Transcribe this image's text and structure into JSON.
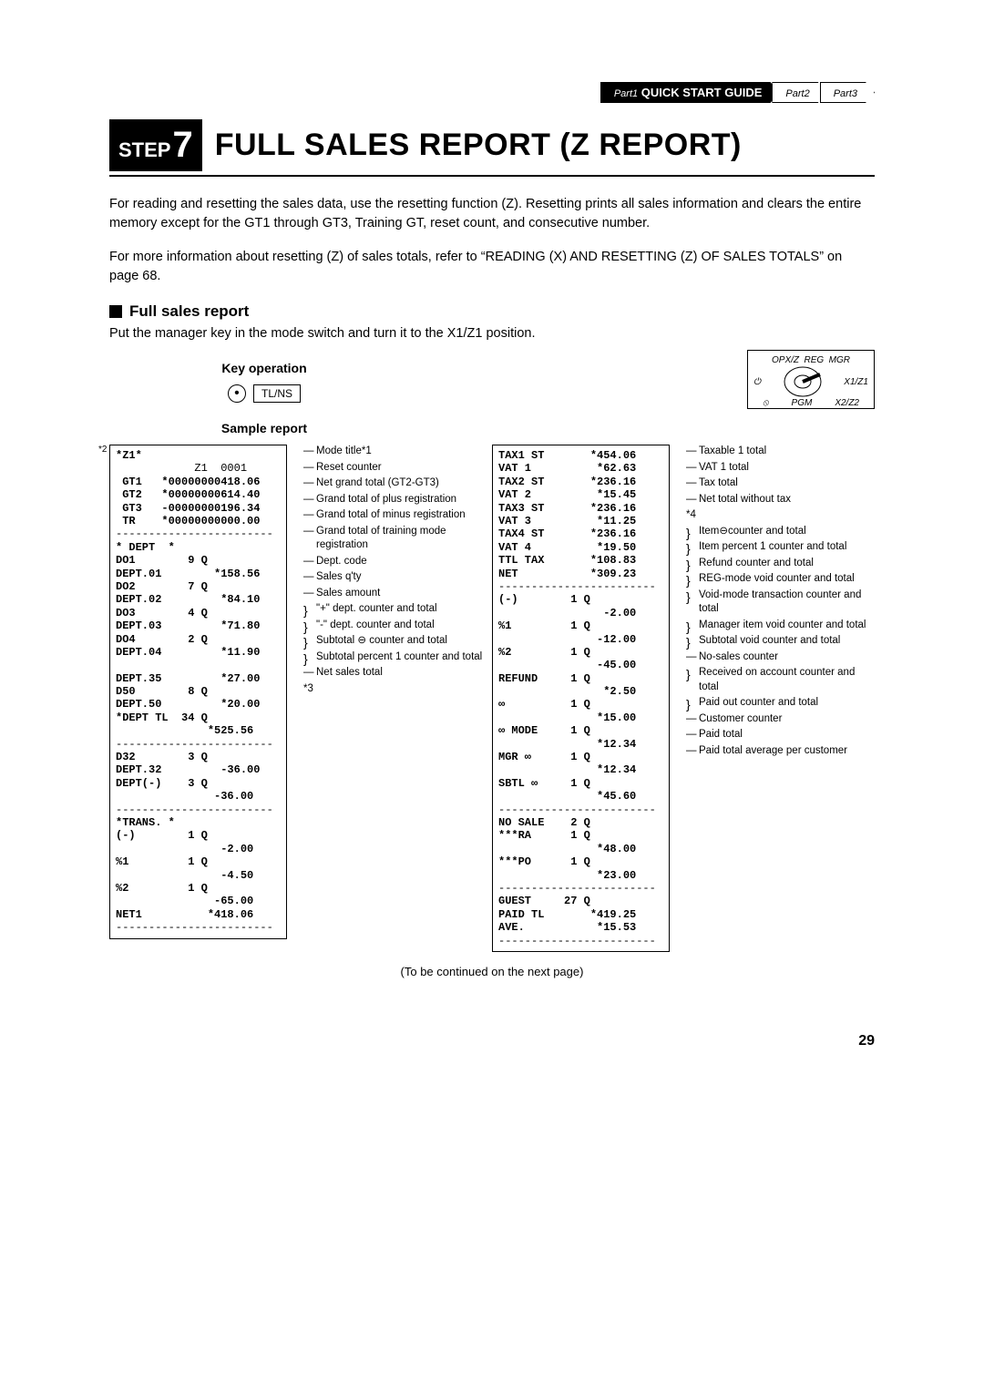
{
  "nav": {
    "part1_pre": "Part1",
    "part1_title": "QUICK START GUIDE",
    "part2": "Part2",
    "part3": "Part3"
  },
  "step": {
    "label": "STEP",
    "num": "7",
    "title": "FULL SALES REPORT (Z REPORT)"
  },
  "para1": "For reading and resetting the sales data, use the resetting function (Z).  Resetting prints all sales information and clears the entire memory except for the GT1 through GT3, Training GT, reset count, and consecutive number.",
  "para2": "For more information about resetting (Z) of sales totals, refer to “READING (X) AND RESETTING (Z) OF SALES TOTALS” on page 68.",
  "subhead": "Full sales report",
  "inst": "Put the manager key in the mode switch and turn it to the X1/Z1 position.",
  "keyop_title": "Key operation",
  "sample_title": "Sample report",
  "tlns": "TL/NS",
  "dial": {
    "top": "REG",
    "tl": "OPX/Z",
    "tr": "MGR",
    "ml": "⏻",
    "mr": "X1/Z1",
    "bl": "⦸",
    "br": "X2/Z2",
    "bot": "PGM"
  },
  "receipt_left": [
    {
      "t": "*Z1*",
      "b": true
    },
    {
      "t": "            Z1  0001"
    },
    {
      "t": " GT1   *00000000418.06",
      "b": true
    },
    {
      "t": " GT2   *00000000614.40",
      "b": true
    },
    {
      "t": " GT3   -00000000196.34",
      "b": true
    },
    {
      "t": " TR    *00000000000.00",
      "b": true
    },
    {
      "t": "------------------------"
    },
    {
      "t": "* DEPT  *",
      "b": true
    },
    {
      "t": "DO1        9 Q",
      "b": true
    },
    {
      "t": "DEPT.01        *158.56",
      "b": true
    },
    {
      "t": "DO2        7 Q",
      "b": true
    },
    {
      "t": "DEPT.02         *84.10",
      "b": true
    },
    {
      "t": "DO3        4 Q",
      "b": true
    },
    {
      "t": "DEPT.03         *71.80",
      "b": true
    },
    {
      "t": "DO4        2 Q",
      "b": true
    },
    {
      "t": "DEPT.04         *11.90",
      "b": true
    },
    {
      "t": " "
    },
    {
      "t": "DEPT.35         *27.00",
      "b": true
    },
    {
      "t": "D50        8 Q",
      "b": true
    },
    {
      "t": "DEPT.50         *20.00",
      "b": true
    },
    {
      "t": "*DEPT TL  34 Q",
      "b": true
    },
    {
      "t": "              *525.56",
      "b": true
    },
    {
      "t": "------------------------"
    },
    {
      "t": "D32        3 Q",
      "b": true
    },
    {
      "t": "DEPT.32         -36.00",
      "b": true
    },
    {
      "t": "DEPT(-)    3 Q",
      "b": true
    },
    {
      "t": "               -36.00",
      "b": true
    },
    {
      "t": "------------------------"
    },
    {
      "t": "*TRANS. *",
      "b": true
    },
    {
      "t": "(-)        1 Q",
      "b": true
    },
    {
      "t": "                -2.00",
      "b": true
    },
    {
      "t": "%1         1 Q",
      "b": true
    },
    {
      "t": "                -4.50",
      "b": true
    },
    {
      "t": "%2         1 Q",
      "b": true
    },
    {
      "t": "               -65.00",
      "b": true
    },
    {
      "t": "NET1          *418.06",
      "b": true
    },
    {
      "t": "------------------------"
    }
  ],
  "annot_left": [
    {
      "c": "dash",
      "t": "Mode title*1"
    },
    {
      "c": "dash",
      "t": "Reset counter"
    },
    {
      "c": "dash",
      "t": "Net grand total (GT2-GT3)"
    },
    {
      "c": "dash",
      "t": "Grand total of plus registration"
    },
    {
      "c": "dash",
      "t": "Grand total of minus registration"
    },
    {
      "c": "dash",
      "t": "Grand total of training mode registration"
    },
    {
      "c": "dash",
      "t": "Dept. code"
    },
    {
      "c": "dash",
      "t": "Sales q'ty"
    },
    {
      "c": "dash",
      "t": "Sales amount"
    },
    {
      "c": "",
      "t": " "
    },
    {
      "c": "",
      "t": " "
    },
    {
      "c": "",
      "t": " "
    },
    {
      "c": "brace",
      "t": "\"+\" dept. counter and total"
    },
    {
      "c": "",
      "t": " "
    },
    {
      "c": "",
      "t": " "
    },
    {
      "c": "brace",
      "t": "\"-\" dept. counter and total"
    },
    {
      "c": "",
      "t": " "
    },
    {
      "c": "brace",
      "t": "Subtotal ⊖ counter and total"
    },
    {
      "c": "brace",
      "t": "Subtotal percent 1 counter and total"
    },
    {
      "c": "",
      "t": " "
    },
    {
      "c": "dash",
      "t": "Net sales total"
    },
    {
      "c": "",
      "t": "                         *3"
    }
  ],
  "receipt_right": [
    {
      "t": "TAX1 ST       *454.06",
      "b": true
    },
    {
      "t": "VAT 1          *62.63",
      "b": true
    },
    {
      "t": "TAX2 ST       *236.16",
      "b": true
    },
    {
      "t": "VAT 2          *15.45",
      "b": true
    },
    {
      "t": "TAX3 ST       *236.16",
      "b": true
    },
    {
      "t": "VAT 3          *11.25",
      "b": true
    },
    {
      "t": "TAX4 ST       *236.16",
      "b": true
    },
    {
      "t": "VAT 4          *19.50",
      "b": true
    },
    {
      "t": "TTL TAX       *108.83",
      "b": true
    },
    {
      "t": "NET           *309.23",
      "b": true
    },
    {
      "t": "------------------------"
    },
    {
      "t": "(-)        1 Q",
      "b": true
    },
    {
      "t": "                -2.00",
      "b": true
    },
    {
      "t": "%1         1 Q",
      "b": true
    },
    {
      "t": "               -12.00",
      "b": true
    },
    {
      "t": "%2         1 Q",
      "b": true
    },
    {
      "t": "               -45.00",
      "b": true
    },
    {
      "t": "REFUND     1 Q",
      "b": true
    },
    {
      "t": "                *2.50",
      "b": true
    },
    {
      "t": "∞          1 Q",
      "b": true
    },
    {
      "t": "               *15.00",
      "b": true
    },
    {
      "t": "∞ MODE     1 Q",
      "b": true
    },
    {
      "t": "               *12.34",
      "b": true
    },
    {
      "t": "MGR ∞      1 Q",
      "b": true
    },
    {
      "t": "               *12.34",
      "b": true
    },
    {
      "t": "SBTL ∞     1 Q",
      "b": true
    },
    {
      "t": "               *45.60",
      "b": true
    },
    {
      "t": "------------------------"
    },
    {
      "t": "NO SALE    2 Q",
      "b": true
    },
    {
      "t": "***RA      1 Q",
      "b": true
    },
    {
      "t": "               *48.00",
      "b": true
    },
    {
      "t": "***PO      1 Q",
      "b": true
    },
    {
      "t": "               *23.00",
      "b": true
    },
    {
      "t": "------------------------"
    },
    {
      "t": "GUEST     27 Q",
      "b": true
    },
    {
      "t": "PAID TL       *419.25",
      "b": true
    },
    {
      "t": "AVE.           *15.53",
      "b": true
    },
    {
      "t": "------------------------"
    }
  ],
  "annot_right": [
    {
      "c": "dash",
      "t": "Taxable 1 total"
    },
    {
      "c": "dash",
      "t": "VAT 1 total"
    },
    {
      "c": "",
      "t": " "
    },
    {
      "c": "",
      "t": " "
    },
    {
      "c": "",
      "t": " "
    },
    {
      "c": "",
      "t": " "
    },
    {
      "c": "dash",
      "t": "Tax total"
    },
    {
      "c": "dash",
      "t": "Net total without tax"
    },
    {
      "c": "",
      "t": "                        *4"
    },
    {
      "c": "brace",
      "t": "Item⊖counter and total"
    },
    {
      "c": "brace",
      "t": "Item percent 1 counter and total"
    },
    {
      "c": "",
      "t": " "
    },
    {
      "c": "brace",
      "t": "Refund counter and total"
    },
    {
      "c": "brace",
      "t": "REG-mode void counter and total"
    },
    {
      "c": "brace",
      "t": "Void-mode transaction counter and total"
    },
    {
      "c": "brace",
      "t": "Manager item void counter and total"
    },
    {
      "c": "brace",
      "t": "Subtotal void counter and total"
    },
    {
      "c": "",
      "t": " "
    },
    {
      "c": "dash",
      "t": "No-sales counter"
    },
    {
      "c": "brace",
      "t": "Received on account counter and total"
    },
    {
      "c": "brace",
      "t": "Paid out counter and total"
    },
    {
      "c": "",
      "t": " "
    },
    {
      "c": "dash",
      "t": "Customer counter"
    },
    {
      "c": "dash",
      "t": "Paid total"
    },
    {
      "c": "dash",
      "t": "Paid total average per customer"
    }
  ],
  "note2": "*2",
  "cont": "(To be continued on the next page)",
  "pagenum": "29"
}
